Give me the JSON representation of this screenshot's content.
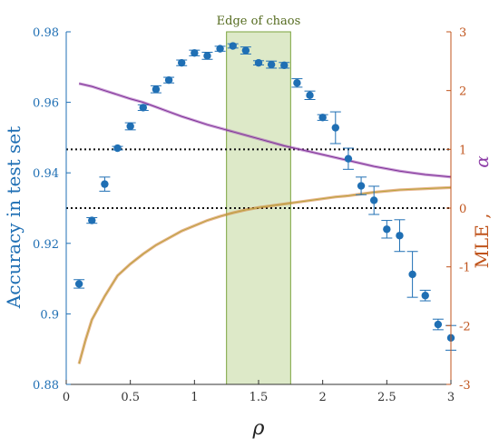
{
  "chart_data": {
    "type": "scatter",
    "xlabel": "ρ",
    "ylabel_left": "Accuracy in test set",
    "ylabel_right_mle": "MLE ,",
    "ylabel_right_alpha": "α",
    "xlim": [
      0,
      3
    ],
    "ylim_left": [
      0.88,
      0.98
    ],
    "ylim_right": [
      -3,
      3
    ],
    "x_ticks": [
      "0",
      "0.5",
      "1",
      "1.5",
      "2",
      "2.5",
      "3"
    ],
    "y_ticks_left": [
      "0.88",
      "0.9",
      "0.92",
      "0.94",
      "0.96",
      "0.98"
    ],
    "y_ticks_right": [
      "-3",
      "-2",
      "-1",
      "0",
      "1",
      "2",
      "3"
    ],
    "region": {
      "label": "Edge of chaos",
      "x_start": 1.25,
      "x_end": 1.75,
      "color": "#dde9c8",
      "edge_color": "#7aa33c"
    },
    "hlines_right": [
      1,
      0
    ],
    "colors": {
      "accuracy": "#1f6fb4",
      "mle": "#d4782f",
      "alpha": "#9b48b2",
      "right_axis": "#c0541c"
    },
    "accuracy": {
      "x": [
        0.1,
        0.2,
        0.3,
        0.4,
        0.5,
        0.6,
        0.7,
        0.8,
        0.9,
        1.0,
        1.1,
        1.2,
        1.3,
        1.4,
        1.5,
        1.6,
        1.7,
        1.8,
        1.9,
        2.0,
        2.1,
        2.2,
        2.3,
        2.4,
        2.5,
        2.6,
        2.7,
        2.8,
        2.9,
        3.0
      ],
      "y": [
        0.9085,
        0.9265,
        0.9368,
        0.947,
        0.9532,
        0.9585,
        0.9637,
        0.9663,
        0.9712,
        0.974,
        0.9732,
        0.9752,
        0.976,
        0.9747,
        0.9712,
        0.9707,
        0.9705,
        0.9655,
        0.962,
        0.9557,
        0.9528,
        0.944,
        0.9363,
        0.9322,
        0.924,
        0.9222,
        0.9112,
        0.9052,
        0.897,
        0.8932
      ],
      "err": [
        0.0012,
        0.0008,
        0.002,
        0.0005,
        0.001,
        0.0008,
        0.001,
        0.0008,
        0.0008,
        0.0008,
        0.001,
        0.0007,
        0.0006,
        0.001,
        0.0006,
        0.001,
        0.0008,
        0.0012,
        0.0012,
        0.0008,
        0.0045,
        0.003,
        0.0025,
        0.004,
        0.0025,
        0.0045,
        0.0065,
        0.0015,
        0.0015,
        0.0035
      ]
    },
    "mle": {
      "x": [
        0.1,
        0.15,
        0.2,
        0.3,
        0.4,
        0.5,
        0.6,
        0.7,
        0.8,
        0.9,
        1.0,
        1.1,
        1.2,
        1.3,
        1.4,
        1.5,
        1.6,
        1.7,
        1.8,
        1.9,
        2.0,
        2.1,
        2.2,
        2.3,
        2.4,
        2.5,
        2.6,
        2.7,
        2.8,
        2.9,
        3.0
      ],
      "y": [
        -2.65,
        -2.25,
        -1.9,
        -1.5,
        -1.15,
        -0.95,
        -0.78,
        -0.63,
        -0.51,
        -0.39,
        -0.3,
        -0.21,
        -0.14,
        -0.08,
        -0.03,
        0.01,
        0.04,
        0.07,
        0.1,
        0.13,
        0.16,
        0.19,
        0.21,
        0.24,
        0.27,
        0.29,
        0.31,
        0.32,
        0.33,
        0.34,
        0.35
      ]
    },
    "alpha": {
      "x": [
        0.1,
        0.2,
        0.3,
        0.4,
        0.5,
        0.6,
        0.7,
        0.8,
        0.9,
        1.0,
        1.1,
        1.2,
        1.3,
        1.4,
        1.5,
        1.6,
        1.7,
        1.8,
        1.9,
        2.0,
        2.1,
        2.2,
        2.3,
        2.4,
        2.5,
        2.6,
        2.7,
        2.8,
        2.9,
        3.0
      ],
      "y": [
        2.12,
        2.07,
        2.0,
        1.93,
        1.86,
        1.8,
        1.72,
        1.64,
        1.56,
        1.49,
        1.42,
        1.36,
        1.3,
        1.24,
        1.18,
        1.12,
        1.06,
        1.01,
        0.96,
        0.91,
        0.86,
        0.81,
        0.76,
        0.71,
        0.67,
        0.63,
        0.6,
        0.57,
        0.55,
        0.53
      ]
    }
  }
}
